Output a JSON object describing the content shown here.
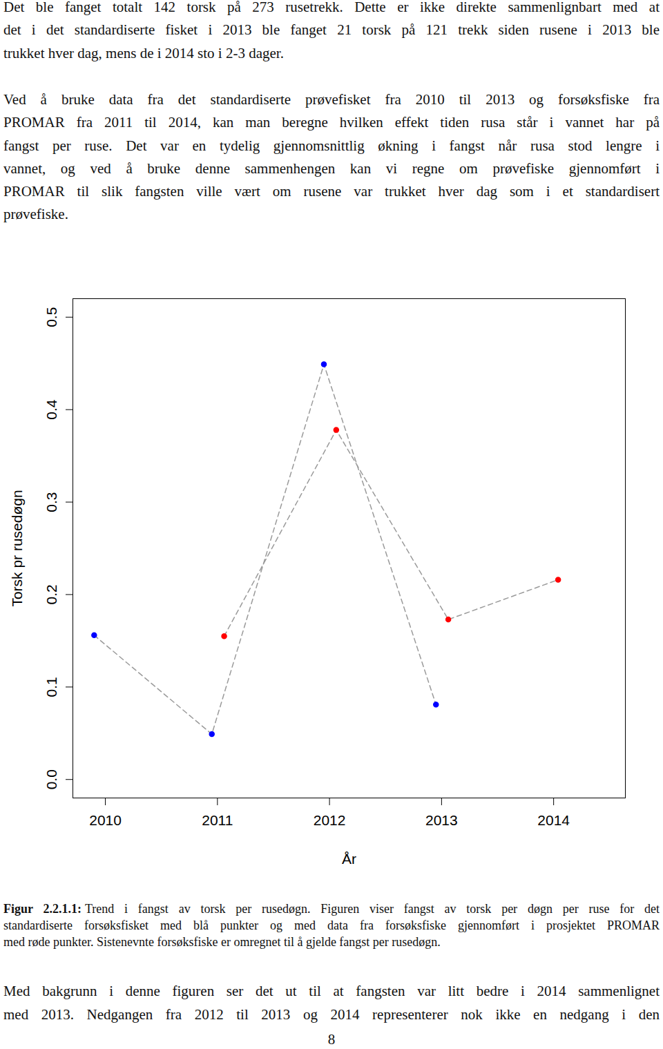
{
  "document": {
    "paragraph_1": [
      "Det ble fanget totalt 142 torsk på 273 rusetrekk. Dette er ikke direkte sammenlignbart med at",
      "det i det standardiserte fisket i 2013 ble fanget 21 torsk på 121 trekk siden rusene i 2013 ble",
      "trukket hver dag, mens de i 2014 sto i 2-3 dager."
    ],
    "paragraph_2": [
      "Ved å bruke data fra det standardiserte prøvefisket fra 2010 til 2013 og forsøksfiske fra",
      "PROMAR fra 2011 til 2014, kan man beregne hvilken effekt tiden rusa står i vannet har på",
      "fangst per ruse. Det var en tydelig gjennomsnittlig økning i fangst når rusa stod lengre i",
      "vannet, og ved å bruke denne sammenhengen kan vi regne om prøvefiske gjennomført i",
      "PROMAR til slik fangsten ville vært om rusene var trukket hver dag som i et standardisert",
      "prøvefiske."
    ],
    "caption": {
      "label": "Figur 2.2.1.1:",
      "lines": [
        "Trend i fangst av torsk per rusedøgn. Figuren viser fangst av torsk per døgn per ruse for det",
        "standardiserte forsøksfisket med blå punkter og med data fra forsøksfiske gjennomført i prosjektet PROMAR",
        "med røde punkter. Sistenevnte forsøksfiske er omregnet til å gjelde fangst per rusedøgn."
      ]
    },
    "paragraph_3": [
      "Med bakgrunn i denne figuren ser det ut til at fangsten var litt bedre i 2014 sammenlignet",
      "med 2013. Nedgangen fra 2012 til 2013 og 2014 representerer nok ikke en nedgang i den"
    ],
    "page_number": "8"
  },
  "chart_data": {
    "type": "line",
    "x_label": "År",
    "y_label": "Torsk pr rusedøgn",
    "marker": "circle",
    "line_style": "dashed",
    "xlim": [
      2009.71,
      2014.64
    ],
    "xticks": [
      2010,
      2011,
      2012,
      2013,
      2014
    ],
    "ylim": [
      -0.02,
      0.52
    ],
    "yticks": [
      {
        "value": 0,
        "label": "0.0"
      },
      0.1,
      0.2,
      0.3,
      0.4,
      0.5
    ],
    "series": [
      {
        "color": "#0000ff",
        "x": [
          2009.9,
          2010.95,
          2011.95,
          2012.95
        ],
        "values": [
          0.156,
          0.049,
          0.449,
          0.081
        ]
      },
      {
        "color": "#ff0000",
        "x": [
          2011.06,
          2012.06,
          2013.06,
          2014.04
        ],
        "values": [
          0.155,
          0.378,
          0.173,
          0.216
        ]
      }
    ]
  }
}
